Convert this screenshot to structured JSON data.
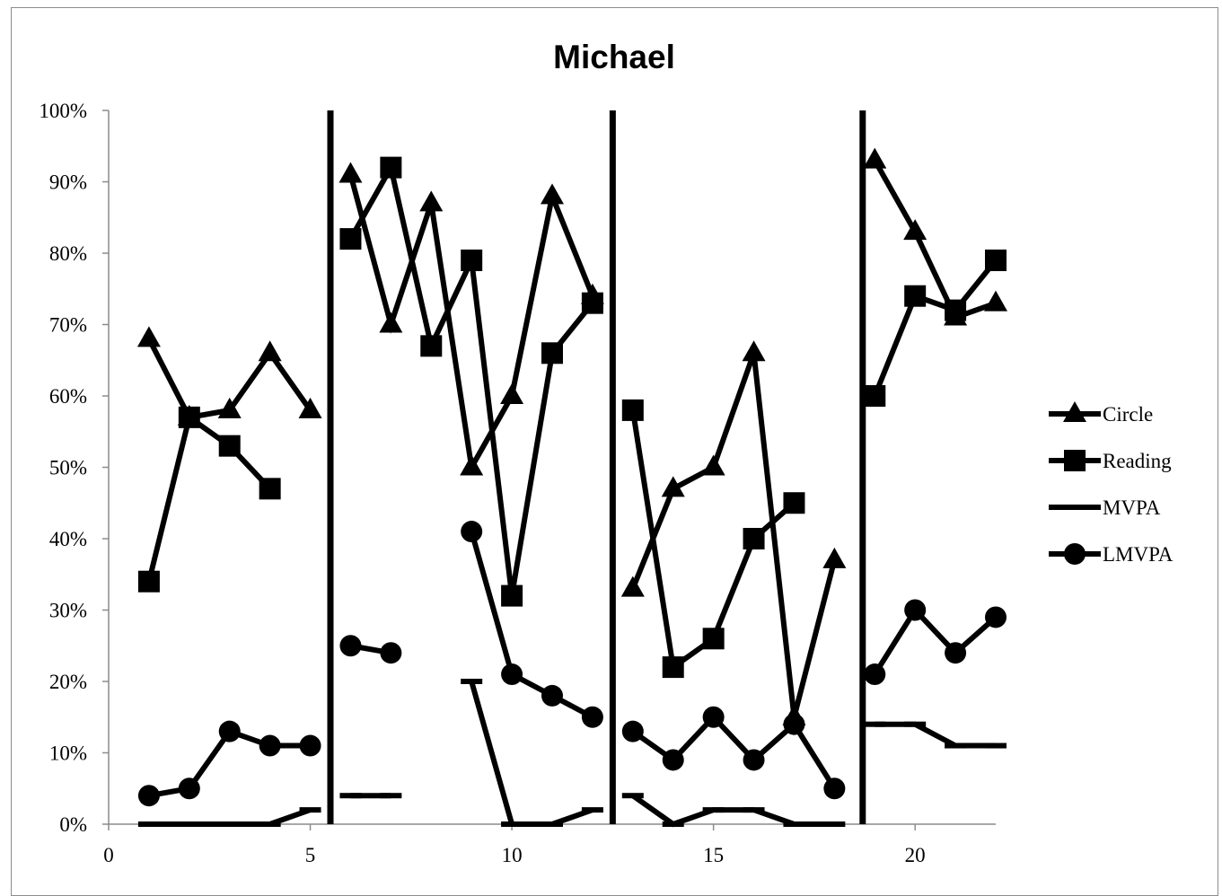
{
  "chart_data": {
    "type": "line",
    "title": "Michael",
    "xlabel": "",
    "ylabel": "",
    "xlim": [
      0,
      22
    ],
    "ylim": [
      0,
      100
    ],
    "x_ticks": [
      {
        "value": 0,
        "label": "0"
      },
      {
        "value": 5,
        "label": "5"
      },
      {
        "value": 10,
        "label": "10"
      },
      {
        "value": 15,
        "label": "15"
      },
      {
        "value": 20,
        "label": "20"
      }
    ],
    "y_ticks": [
      {
        "value": 0,
        "label": "0%"
      },
      {
        "value": 10,
        "label": "10%"
      },
      {
        "value": 20,
        "label": "20%"
      },
      {
        "value": 30,
        "label": "30%"
      },
      {
        "value": 40,
        "label": "40%"
      },
      {
        "value": 50,
        "label": "50%"
      },
      {
        "value": 60,
        "label": "60%"
      },
      {
        "value": 70,
        "label": "70%"
      },
      {
        "value": 80,
        "label": "80%"
      },
      {
        "value": 90,
        "label": "90%"
      },
      {
        "value": 100,
        "label": "100%"
      }
    ],
    "grid": false,
    "legend_position": "right",
    "phase_change_lines_x": [
      5.5,
      12.5,
      18.7
    ],
    "line_color": "#000000",
    "series": [
      {
        "name": "Circle",
        "marker": "triangle",
        "segments": [
          [
            [
              1,
              68
            ],
            [
              2,
              57
            ],
            [
              3,
              58
            ],
            [
              4,
              66
            ],
            [
              5,
              58
            ]
          ],
          [
            [
              6,
              91
            ],
            [
              7,
              70
            ],
            [
              8,
              87
            ],
            [
              9,
              50
            ],
            [
              10,
              60
            ],
            [
              11,
              88
            ],
            [
              12,
              74
            ]
          ],
          [
            [
              13,
              33
            ],
            [
              14,
              47
            ],
            [
              15,
              50
            ],
            [
              16,
              66
            ],
            [
              17,
              15
            ],
            [
              18,
              37
            ]
          ],
          [
            [
              19,
              93
            ],
            [
              20,
              83
            ],
            [
              21,
              71
            ],
            [
              22,
              73
            ]
          ]
        ]
      },
      {
        "name": "Reading",
        "marker": "square",
        "segments": [
          [
            [
              1,
              34
            ],
            [
              2,
              57
            ],
            [
              3,
              53
            ],
            [
              4,
              47
            ]
          ],
          [
            [
              6,
              82
            ],
            [
              7,
              92
            ],
            [
              8,
              67
            ],
            [
              9,
              79
            ],
            [
              10,
              32
            ],
            [
              11,
              66
            ],
            [
              12,
              73
            ]
          ],
          [
            [
              13,
              58
            ],
            [
              14,
              22
            ],
            [
              15,
              26
            ],
            [
              16,
              40
            ],
            [
              17,
              45
            ]
          ],
          [
            [
              19,
              60
            ],
            [
              20,
              74
            ],
            [
              21,
              72
            ],
            [
              22,
              79
            ]
          ]
        ]
      },
      {
        "name": "MVPA",
        "marker": "dash",
        "segments": [
          [
            [
              1,
              0
            ],
            [
              2,
              0
            ],
            [
              3,
              0
            ],
            [
              4,
              0
            ],
            [
              5,
              2
            ]
          ],
          [
            [
              6,
              4
            ],
            [
              7,
              4
            ]
          ],
          [
            [
              9,
              20
            ],
            [
              10,
              0
            ],
            [
              11,
              0
            ],
            [
              12,
              2
            ]
          ],
          [
            [
              13,
              4
            ],
            [
              14,
              0
            ],
            [
              15,
              2
            ],
            [
              16,
              2
            ],
            [
              17,
              0
            ],
            [
              18,
              0
            ]
          ],
          [
            [
              19,
              14
            ],
            [
              20,
              14
            ],
            [
              21,
              11
            ],
            [
              22,
              11
            ]
          ]
        ]
      },
      {
        "name": "LMVPA",
        "marker": "circle",
        "segments": [
          [
            [
              1,
              4
            ],
            [
              2,
              5
            ],
            [
              3,
              13
            ],
            [
              4,
              11
            ],
            [
              5,
              11
            ]
          ],
          [
            [
              6,
              25
            ],
            [
              7,
              24
            ]
          ],
          [
            [
              9,
              41
            ],
            [
              10,
              21
            ],
            [
              11,
              18
            ],
            [
              12,
              15
            ]
          ],
          [
            [
              13,
              13
            ],
            [
              14,
              9
            ],
            [
              15,
              15
            ],
            [
              16,
              9
            ],
            [
              17,
              14
            ],
            [
              18,
              5
            ]
          ],
          [
            [
              19,
              21
            ],
            [
              20,
              30
            ],
            [
              21,
              24
            ],
            [
              22,
              29
            ]
          ]
        ]
      }
    ]
  }
}
